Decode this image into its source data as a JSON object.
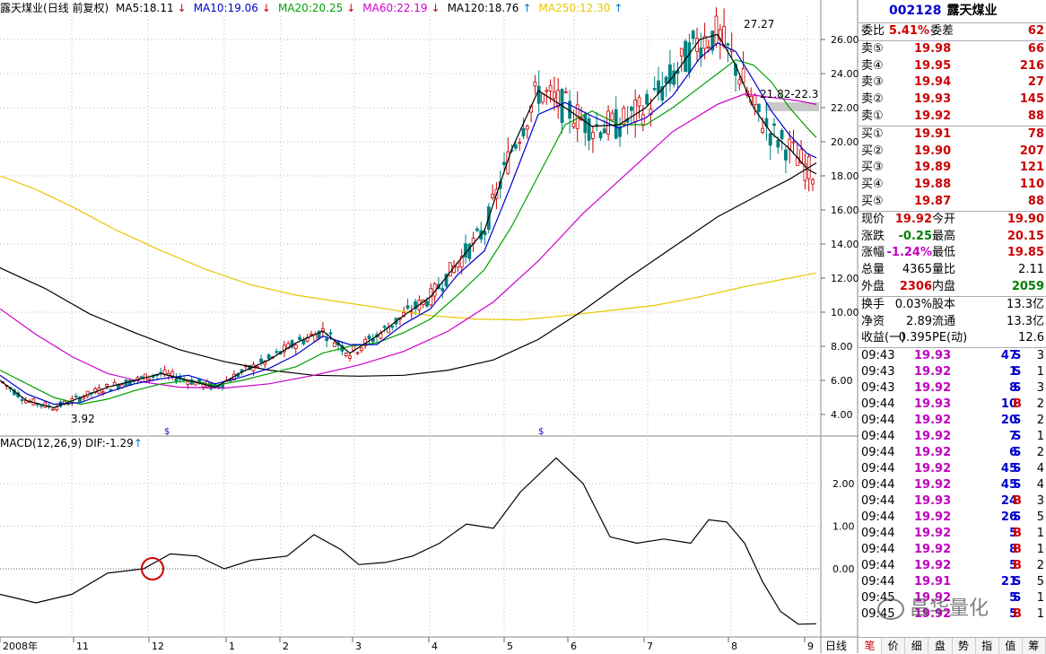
{
  "kline": {
    "stock_name": "露天煤业",
    "mode_label": "(日线 前复权)",
    "ma": [
      {
        "label": "MA5:18.11",
        "arrow": "↓",
        "color": "#000000"
      },
      {
        "label": "MA10:19.06",
        "arrow": "↓",
        "color": "#0000cc"
      },
      {
        "label": "MA20:20.25",
        "arrow": "↓",
        "color": "#00a000"
      },
      {
        "label": "MA60:22.19",
        "arrow": "↓",
        "color": "#cc00cc"
      },
      {
        "label": "MA120:18.76",
        "arrow": "↑",
        "color": "#000000"
      },
      {
        "label": "MA250:12.30",
        "arrow": "↑",
        "color": "#e6c800"
      }
    ],
    "price_ticks": [
      "26.00",
      "24.00",
      "22.00",
      "20.00",
      "18.00",
      "16.00",
      "14.00",
      "12.00",
      "10.00",
      "8.00",
      "6.00",
      "4.00"
    ],
    "annotations": {
      "high": "27.27",
      "low": "3.92",
      "range": "21.82-22.3"
    }
  },
  "macd": {
    "label": "MACD(12,26,9)",
    "dif_label": "DIF:-1.29",
    "dif_arrow": "↑",
    "ticks": [
      "2.00",
      "1.00",
      "0.00"
    ]
  },
  "time_axis": {
    "labels": [
      "2008年",
      "11",
      "12",
      "1",
      "2",
      "3",
      "4",
      "5",
      "6",
      "7",
      "8",
      "9"
    ],
    "period": "日线"
  },
  "chart_data": {
    "type": "line",
    "title": "露天煤业 (日线 前复权)",
    "price_range": [
      3.0,
      28.0
    ],
    "series": [
      {
        "name": "MA250",
        "color": "#e6c800",
        "points": [
          [
            0,
            18.0
          ],
          [
            40,
            17.2
          ],
          [
            80,
            16.2
          ],
          [
            130,
            14.8
          ],
          [
            180,
            13.6
          ],
          [
            230,
            12.5
          ],
          [
            280,
            11.6
          ],
          [
            330,
            11.0
          ],
          [
            380,
            10.6
          ],
          [
            430,
            10.2
          ],
          [
            480,
            9.8
          ],
          [
            530,
            9.6
          ],
          [
            580,
            9.55
          ],
          [
            630,
            9.8
          ],
          [
            680,
            10.1
          ],
          [
            730,
            10.4
          ],
          [
            780,
            10.9
          ],
          [
            830,
            11.5
          ],
          [
            880,
            12.0
          ],
          [
            910,
            12.3
          ]
        ]
      },
      {
        "name": "MA120",
        "color": "#000000",
        "points": [
          [
            0,
            12.6
          ],
          [
            50,
            11.4
          ],
          [
            100,
            9.9
          ],
          [
            150,
            8.8
          ],
          [
            200,
            7.8
          ],
          [
            250,
            7.1
          ],
          [
            300,
            6.6
          ],
          [
            350,
            6.3
          ],
          [
            400,
            6.25
          ],
          [
            450,
            6.3
          ],
          [
            500,
            6.6
          ],
          [
            550,
            7.2
          ],
          [
            600,
            8.4
          ],
          [
            650,
            10.1
          ],
          [
            700,
            12.0
          ],
          [
            750,
            13.8
          ],
          [
            800,
            15.6
          ],
          [
            850,
            17.0
          ],
          [
            880,
            17.8
          ],
          [
            910,
            18.76
          ]
        ]
      },
      {
        "name": "MA60",
        "color": "#cc00cc",
        "points": [
          [
            0,
            10.2
          ],
          [
            40,
            8.7
          ],
          [
            80,
            7.4
          ],
          [
            120,
            6.4
          ],
          [
            160,
            5.9
          ],
          [
            200,
            5.6
          ],
          [
            250,
            5.55
          ],
          [
            300,
            5.8
          ],
          [
            350,
            6.3
          ],
          [
            400,
            6.9
          ],
          [
            450,
            7.7
          ],
          [
            500,
            8.9
          ],
          [
            550,
            10.6
          ],
          [
            600,
            13.0
          ],
          [
            650,
            15.8
          ],
          [
            700,
            18.2
          ],
          [
            750,
            20.6
          ],
          [
            800,
            22.2
          ],
          [
            830,
            22.8
          ],
          [
            860,
            22.6
          ],
          [
            890,
            22.4
          ],
          [
            910,
            22.19
          ]
        ]
      },
      {
        "name": "MA20",
        "color": "#00a000",
        "points": [
          [
            0,
            6.6
          ],
          [
            30,
            5.8
          ],
          [
            60,
            5.0
          ],
          [
            90,
            4.6
          ],
          [
            120,
            4.9
          ],
          [
            150,
            5.4
          ],
          [
            180,
            5.8
          ],
          [
            210,
            6.0
          ],
          [
            240,
            5.7
          ],
          [
            270,
            6.0
          ],
          [
            300,
            6.4
          ],
          [
            330,
            6.8
          ],
          [
            360,
            7.6
          ],
          [
            390,
            8.0
          ],
          [
            420,
            8.2
          ],
          [
            450,
            8.8
          ],
          [
            480,
            9.6
          ],
          [
            510,
            11.0
          ],
          [
            540,
            12.5
          ],
          [
            570,
            15.0
          ],
          [
            600,
            18.0
          ],
          [
            630,
            21.0
          ],
          [
            660,
            21.8
          ],
          [
            690,
            21.0
          ],
          [
            720,
            21.0
          ],
          [
            750,
            22.0
          ],
          [
            780,
            23.2
          ],
          [
            800,
            24.0
          ],
          [
            820,
            24.8
          ],
          [
            840,
            24.5
          ],
          [
            860,
            23.5
          ],
          [
            880,
            22.0
          ],
          [
            900,
            20.8
          ],
          [
            910,
            20.25
          ]
        ]
      },
      {
        "name": "MA10",
        "color": "#0000cc",
        "points": [
          [
            0,
            6.3
          ],
          [
            30,
            5.2
          ],
          [
            60,
            4.6
          ],
          [
            90,
            4.7
          ],
          [
            120,
            5.3
          ],
          [
            150,
            5.8
          ],
          [
            180,
            6.1
          ],
          [
            210,
            6.3
          ],
          [
            240,
            5.8
          ],
          [
            270,
            6.2
          ],
          [
            300,
            6.7
          ],
          [
            330,
            7.5
          ],
          [
            360,
            8.6
          ],
          [
            390,
            8.1
          ],
          [
            420,
            8.1
          ],
          [
            450,
            9.3
          ],
          [
            480,
            10.2
          ],
          [
            510,
            12.2
          ],
          [
            540,
            13.6
          ],
          [
            570,
            17.5
          ],
          [
            600,
            21.6
          ],
          [
            630,
            22.3
          ],
          [
            660,
            21.5
          ],
          [
            690,
            20.8
          ],
          [
            720,
            21.4
          ],
          [
            750,
            22.7
          ],
          [
            780,
            24.9
          ],
          [
            800,
            25.8
          ],
          [
            820,
            25.3
          ],
          [
            840,
            23.6
          ],
          [
            860,
            21.8
          ],
          [
            880,
            20.4
          ],
          [
            900,
            19.3
          ],
          [
            910,
            19.06
          ]
        ]
      },
      {
        "name": "MA5",
        "color": "#000000",
        "points": [
          [
            0,
            6.0
          ],
          [
            30,
            4.8
          ],
          [
            60,
            4.4
          ],
          [
            90,
            5.0
          ],
          [
            120,
            5.6
          ],
          [
            150,
            6.0
          ],
          [
            180,
            6.4
          ],
          [
            210,
            6.0
          ],
          [
            240,
            5.6
          ],
          [
            270,
            6.5
          ],
          [
            300,
            7.2
          ],
          [
            330,
            8.2
          ],
          [
            360,
            8.9
          ],
          [
            390,
            7.6
          ],
          [
            420,
            8.6
          ],
          [
            450,
            9.8
          ],
          [
            480,
            10.9
          ],
          [
            510,
            12.9
          ],
          [
            540,
            14.8
          ],
          [
            570,
            19.5
          ],
          [
            600,
            23.0
          ],
          [
            630,
            22.0
          ],
          [
            660,
            20.9
          ],
          [
            690,
            21.0
          ],
          [
            720,
            22.0
          ],
          [
            750,
            23.8
          ],
          [
            780,
            26.0
          ],
          [
            800,
            26.3
          ],
          [
            820,
            24.5
          ],
          [
            840,
            22.0
          ],
          [
            860,
            20.5
          ],
          [
            880,
            19.6
          ],
          [
            900,
            18.4
          ],
          [
            910,
            18.11
          ]
        ]
      }
    ],
    "macd_series": {
      "name": "DIF",
      "range": [
        -1.5,
        2.6
      ],
      "points": [
        [
          0,
          -0.6
        ],
        [
          40,
          -0.8
        ],
        [
          80,
          -0.6
        ],
        [
          120,
          -0.1
        ],
        [
          160,
          0.0
        ],
        [
          190,
          0.35
        ],
        [
          220,
          0.3
        ],
        [
          250,
          0.0
        ],
        [
          280,
          0.2
        ],
        [
          320,
          0.3
        ],
        [
          350,
          0.8
        ],
        [
          380,
          0.45
        ],
        [
          400,
          0.1
        ],
        [
          430,
          0.15
        ],
        [
          460,
          0.3
        ],
        [
          490,
          0.6
        ],
        [
          520,
          1.05
        ],
        [
          550,
          0.95
        ],
        [
          580,
          1.8
        ],
        [
          620,
          2.6
        ],
        [
          650,
          2.0
        ],
        [
          680,
          0.75
        ],
        [
          710,
          0.6
        ],
        [
          740,
          0.7
        ],
        [
          770,
          0.6
        ],
        [
          790,
          1.15
        ],
        [
          810,
          1.1
        ],
        [
          830,
          0.6
        ],
        [
          850,
          -0.3
        ],
        [
          870,
          -1.0
        ],
        [
          890,
          -1.3
        ],
        [
          910,
          -1.29
        ]
      ]
    }
  },
  "quote": {
    "code": "002128",
    "name": "露天煤业",
    "weibi_label": "委比",
    "weibi_value": "5.41%",
    "weicha_label": "委差",
    "weicha_value": "62",
    "asks": [
      {
        "label": "卖⑤",
        "price": "19.98",
        "vol": "66"
      },
      {
        "label": "卖④",
        "price": "19.95",
        "vol": "216"
      },
      {
        "label": "卖③",
        "price": "19.94",
        "vol": "27"
      },
      {
        "label": "卖②",
        "price": "19.93",
        "vol": "145"
      },
      {
        "label": "卖①",
        "price": "19.92",
        "vol": "88"
      }
    ],
    "bids": [
      {
        "label": "买①",
        "price": "19.91",
        "vol": "78"
      },
      {
        "label": "买②",
        "price": "19.90",
        "vol": "207"
      },
      {
        "label": "买③",
        "price": "19.89",
        "vol": "121"
      },
      {
        "label": "买④",
        "price": "19.88",
        "vol": "110"
      },
      {
        "label": "买⑤",
        "price": "19.87",
        "vol": "88"
      }
    ],
    "stats1": [
      {
        "k1": "现价",
        "v1": "19.92",
        "k2": "今开",
        "v2": "19.90"
      },
      {
        "k1": "涨跌",
        "v1": "-0.25",
        "k2": "最高",
        "v2": "20.15"
      },
      {
        "k1": "涨幅",
        "v1": "-1.24%",
        "k2": "最低",
        "v2": "19.85"
      },
      {
        "k1": "总量",
        "v1": "4365",
        "k2": "量比",
        "v2": "2.11"
      },
      {
        "k1": "外盘",
        "v1": "2306",
        "k2": "内盘",
        "v2": "2059"
      }
    ],
    "stats2": [
      {
        "k1": "换手",
        "v1": "0.03%",
        "k2": "股本",
        "v2": "13.3亿"
      },
      {
        "k1": "净资",
        "v1": "2.89",
        "k2": "流通",
        "v2": "13.3亿"
      },
      {
        "k1": "收益(一)",
        "v1": "0.395",
        "k2": "PE(动)",
        "v2": "12.6"
      }
    ],
    "ticks": [
      {
        "time": "09:43",
        "price": "19.93",
        "vol": "47",
        "side": "S",
        "n": "3"
      },
      {
        "time": "09:43",
        "price": "19.92",
        "vol": "1",
        "side": "S",
        "n": "1"
      },
      {
        "time": "09:43",
        "price": "19.92",
        "vol": "8",
        "side": "S",
        "n": "3"
      },
      {
        "time": "09:44",
        "price": "19.93",
        "vol": "10",
        "side": "B",
        "n": "2"
      },
      {
        "time": "09:44",
        "price": "19.92",
        "vol": "20",
        "side": "S",
        "n": "2"
      },
      {
        "time": "09:44",
        "price": "19.92",
        "vol": "7",
        "side": "S",
        "n": "1"
      },
      {
        "time": "09:44",
        "price": "19.92",
        "vol": "6",
        "side": "S",
        "n": "2"
      },
      {
        "time": "09:44",
        "price": "19.92",
        "vol": "45",
        "side": "S",
        "n": "4"
      },
      {
        "time": "09:44",
        "price": "19.92",
        "vol": "45",
        "side": "S",
        "n": "4"
      },
      {
        "time": "09:44",
        "price": "19.93",
        "vol": "24",
        "side": "B",
        "n": "3"
      },
      {
        "time": "09:44",
        "price": "19.92",
        "vol": "26",
        "side": "S",
        "n": "5"
      },
      {
        "time": "09:44",
        "price": "19.92",
        "vol": "5",
        "side": "B",
        "n": "1"
      },
      {
        "time": "09:44",
        "price": "19.92",
        "vol": "8",
        "side": "B",
        "n": "1"
      },
      {
        "time": "09:44",
        "price": "19.92",
        "vol": "5",
        "side": "B",
        "n": "2"
      },
      {
        "time": "09:44",
        "price": "19.91",
        "vol": "21",
        "side": "S",
        "n": "5"
      },
      {
        "time": "09:45",
        "price": "19.92",
        "vol": "5",
        "side": "S",
        "n": "1"
      },
      {
        "time": "09:45",
        "price": "19.92",
        "vol": "5",
        "side": "B",
        "n": "1"
      }
    ],
    "tabs": [
      "笔",
      "价",
      "细",
      "盘",
      "势",
      "指",
      "值",
      "筹"
    ]
  },
  "watermark": "昌华量化",
  "colors": {
    "up": "#cc0000",
    "down": "#008080",
    "grid": "#aaaaaa",
    "highlight_band": "#c8c8c8",
    "circle": "#cc0000"
  }
}
